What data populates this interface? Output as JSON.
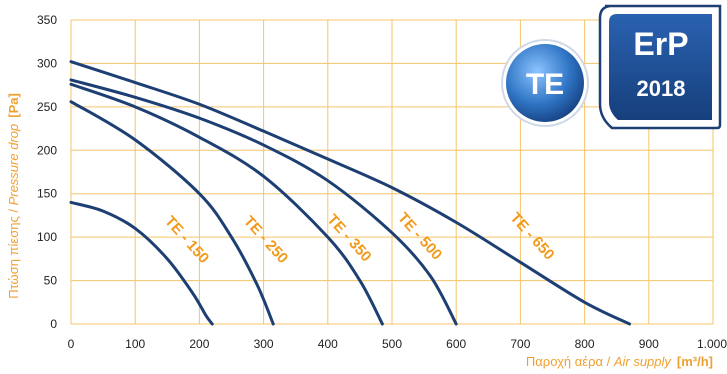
{
  "colors": {
    "grid": "#f5c46a",
    "curve": "#1d3f73",
    "label_orange": "#f29a1c",
    "badge_blue": "#1f4f9a",
    "badge_te_light": "#5aa0e0"
  },
  "badges": {
    "te": "TE",
    "erp_title": "ErP",
    "erp_year": "2018"
  },
  "axes": {
    "ylabel_gr": "Πτώση πίεσης / ",
    "ylabel_en": "Pressure drop",
    "ylabel_unit": "[Pa]",
    "xlabel_gr": "Παροχή αέρα / ",
    "xlabel_en": "Air supply",
    "xlabel_unit": "[m³/h]"
  },
  "chart_data": {
    "type": "line",
    "xlabel": "Παροχή αέρα / Air supply [m³/h]",
    "ylabel": "Πτώση πίεσης / Pressure drop [Pa]",
    "xlim": [
      0,
      1000
    ],
    "ylim": [
      0,
      350
    ],
    "grid": true,
    "x_ticks": [
      0,
      100,
      200,
      300,
      400,
      500,
      600,
      700,
      800,
      900,
      1000
    ],
    "x_tick_labels": [
      "0",
      "100",
      "200",
      "300",
      "400",
      "500",
      "600",
      "700",
      "800",
      "900",
      "1.000"
    ],
    "y_ticks": [
      0,
      50,
      100,
      150,
      200,
      250,
      300,
      350
    ],
    "y_tick_labels": [
      "0",
      "50",
      "100",
      "150",
      "200",
      "250",
      "300",
      "350"
    ],
    "series": [
      {
        "name": "TE - 150",
        "x": [
          0,
          50,
          100,
          150,
          190,
          210,
          220
        ],
        "y": [
          140,
          130,
          110,
          75,
          35,
          10,
          0
        ]
      },
      {
        "name": "TE - 250",
        "x": [
          0,
          100,
          200,
          250,
          290,
          315
        ],
        "y": [
          256,
          212,
          150,
          100,
          45,
          0
        ]
      },
      {
        "name": "TE - 350",
        "x": [
          0,
          100,
          200,
          300,
          400,
          450,
          485
        ],
        "y": [
          276,
          250,
          215,
          170,
          100,
          50,
          0
        ]
      },
      {
        "name": "TE - 500",
        "x": [
          0,
          100,
          200,
          300,
          400,
          500,
          560,
          600
        ],
        "y": [
          281,
          261,
          237,
          206,
          165,
          105,
          55,
          0
        ]
      },
      {
        "name": "TE - 650",
        "x": [
          0,
          100,
          200,
          300,
          400,
          500,
          600,
          700,
          800,
          870
        ],
        "y": [
          302,
          278,
          253,
          222,
          190,
          157,
          117,
          71,
          25,
          0
        ]
      }
    ]
  }
}
